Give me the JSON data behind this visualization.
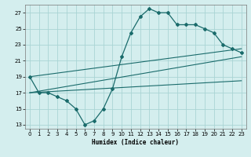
{
  "xlabel": "Humidex (Indice chaleur)",
  "bg_color": "#d4eeee",
  "grid_color": "#aad4d4",
  "line_color": "#1a6b6b",
  "xlim": [
    -0.5,
    23.5
  ],
  "ylim": [
    12.5,
    28.0
  ],
  "yticks": [
    13,
    15,
    17,
    19,
    21,
    23,
    25,
    27
  ],
  "xticks": [
    0,
    1,
    2,
    3,
    4,
    5,
    6,
    7,
    8,
    9,
    10,
    11,
    12,
    13,
    14,
    15,
    16,
    17,
    18,
    19,
    20,
    21,
    22,
    23
  ],
  "curve_x": [
    0,
    1,
    2,
    3,
    4,
    5,
    6,
    7,
    8,
    9,
    10,
    11,
    12,
    13,
    14,
    15,
    16,
    17,
    18,
    19,
    20,
    21,
    22,
    23
  ],
  "curve_y": [
    19,
    17,
    17,
    16.5,
    16,
    15,
    13,
    13.5,
    15,
    17.5,
    21.5,
    24.5,
    26.5,
    27.5,
    27,
    27,
    25.5,
    25.5,
    25.5,
    25,
    24.5,
    23,
    22.5,
    22
  ],
  "line1_x": [
    0,
    23
  ],
  "line1_y": [
    19,
    22.5
  ],
  "line2_x": [
    0,
    23
  ],
  "line2_y": [
    17,
    21.5
  ],
  "line3_x": [
    0,
    23
  ],
  "line3_y": [
    17,
    18.5
  ]
}
